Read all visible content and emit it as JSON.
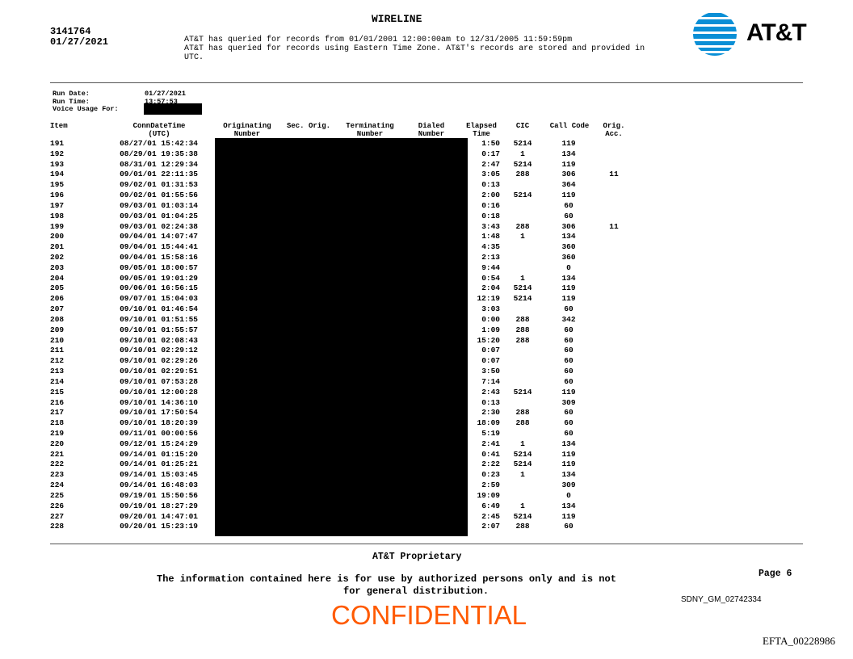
{
  "header": {
    "title": "WIRELINE",
    "case_number": "3141764",
    "date": "01/27/2021",
    "notice_lines": [
      "AT&T has queried for records from 01/01/2001 12:00:00am to 12/31/2005 11:59:59pm",
      "AT&T has queried for records using Eastern Time Zone. AT&T's records are stored and provided in",
      "UTC."
    ],
    "logo_text": "AT&T",
    "brand_color": "#0a8fd6"
  },
  "run_info": {
    "run_date_label": "Run Date:",
    "run_date": "01/27/2021",
    "run_time_label": "Run Time:",
    "run_time": "13:57:53",
    "voice_usage_label": "Voice Usage For:"
  },
  "table": {
    "columns": [
      {
        "l1": "Item",
        "l2": ""
      },
      {
        "l1": "ConnDateTime",
        "l2": "(UTC)"
      },
      {
        "l1": "Originating",
        "l2": "Number"
      },
      {
        "l1": "Sec. Orig.",
        "l2": ""
      },
      {
        "l1": "Terminating",
        "l2": "Number"
      },
      {
        "l1": "Dialed",
        "l2": "Number"
      },
      {
        "l1": "Elapsed",
        "l2": "Time"
      },
      {
        "l1": "CIC",
        "l2": ""
      },
      {
        "l1": "Call Code",
        "l2": ""
      },
      {
        "l1": "Orig.",
        "l2": "Acc."
      }
    ],
    "rows": [
      [
        "191",
        "08/27/01 15:42:34",
        "1:50",
        "5214",
        "119",
        ""
      ],
      [
        "192",
        "08/29/01 19:35:38",
        "0:17",
        "1",
        "134",
        ""
      ],
      [
        "193",
        "08/31/01 12:29:34",
        "2:47",
        "5214",
        "119",
        ""
      ],
      [
        "194",
        "09/01/01 22:11:35",
        "3:05",
        "288",
        "306",
        "11"
      ],
      [
        "195",
        "09/02/01 01:31:53",
        "0:13",
        "",
        "364",
        ""
      ],
      [
        "196",
        "09/02/01 01:55:56",
        "2:00",
        "5214",
        "119",
        ""
      ],
      [
        "197",
        "09/03/01 01:03:14",
        "0:16",
        "",
        "60",
        ""
      ],
      [
        "198",
        "09/03/01 01:04:25",
        "0:18",
        "",
        "60",
        ""
      ],
      [
        "199",
        "09/03/01 02:24:38",
        "3:43",
        "288",
        "306",
        "11"
      ],
      [
        "200",
        "09/04/01 14:07:47",
        "1:48",
        "1",
        "134",
        ""
      ],
      [
        "201",
        "09/04/01 15:44:41",
        "4:35",
        "",
        "360",
        ""
      ],
      [
        "202",
        "09/04/01 15:58:16",
        "2:13",
        "",
        "360",
        ""
      ],
      [
        "203",
        "09/05/01 18:00:57",
        "9:44",
        "",
        "0",
        ""
      ],
      [
        "204",
        "09/05/01 19:01:29",
        "0:54",
        "1",
        "134",
        ""
      ],
      [
        "205",
        "09/06/01 16:56:15",
        "2:04",
        "5214",
        "119",
        ""
      ],
      [
        "206",
        "09/07/01 15:04:03",
        "12:19",
        "5214",
        "119",
        ""
      ],
      [
        "207",
        "09/10/01 01:46:54",
        "3:03",
        "",
        "60",
        ""
      ],
      [
        "208",
        "09/10/01 01:51:55",
        "0:00",
        "288",
        "342",
        ""
      ],
      [
        "209",
        "09/10/01 01:55:57",
        "1:09",
        "288",
        "60",
        ""
      ],
      [
        "210",
        "09/10/01 02:08:43",
        "15:20",
        "288",
        "60",
        ""
      ],
      [
        "211",
        "09/10/01 02:29:12",
        "0:07",
        "",
        "60",
        ""
      ],
      [
        "212",
        "09/10/01 02:29:26",
        "0:07",
        "",
        "60",
        ""
      ],
      [
        "213",
        "09/10/01 02:29:51",
        "3:50",
        "",
        "60",
        ""
      ],
      [
        "214",
        "09/10/01 07:53:28",
        "7:14",
        "",
        "60",
        ""
      ],
      [
        "215",
        "09/10/01 12:00:28",
        "2:43",
        "5214",
        "119",
        ""
      ],
      [
        "216",
        "09/10/01 14:36:10",
        "0:13",
        "",
        "309",
        ""
      ],
      [
        "217",
        "09/10/01 17:50:54",
        "2:30",
        "288",
        "60",
        ""
      ],
      [
        "218",
        "09/10/01 18:20:39",
        "18:09",
        "288",
        "60",
        ""
      ],
      [
        "219",
        "09/11/01 00:00:56",
        "5:19",
        "",
        "60",
        ""
      ],
      [
        "220",
        "09/12/01 15:24:29",
        "2:41",
        "1",
        "134",
        ""
      ],
      [
        "221",
        "09/14/01 01:15:20",
        "0:41",
        "5214",
        "119",
        ""
      ],
      [
        "222",
        "09/14/01 01:25:21",
        "2:22",
        "5214",
        "119",
        ""
      ],
      [
        "223",
        "09/14/01 15:03:45",
        "0:23",
        "1",
        "134",
        ""
      ],
      [
        "224",
        "09/14/01 16:48:03",
        "2:59",
        "",
        "309",
        ""
      ],
      [
        "225",
        "09/19/01 15:50:56",
        "19:09",
        "",
        "0",
        ""
      ],
      [
        "226",
        "09/19/01 18:27:29",
        "6:49",
        "1",
        "134",
        ""
      ],
      [
        "227",
        "09/20/01 14:47:01",
        "2:45",
        "5214",
        "119",
        ""
      ],
      [
        "228",
        "09/20/01 15:23:19",
        "2:07",
        "288",
        "60",
        ""
      ]
    ]
  },
  "footer": {
    "proprietary": "AT&T Proprietary",
    "notice_line1": "The information contained here is for use by authorized persons only and is not",
    "notice_line2": "for general distribution.",
    "page": "Page 6",
    "bates": "SDNY_GM_02742334",
    "confidential": "CONFIDENTIAL",
    "confidential_color": "#ff5a00",
    "efta": "EFTA_00228986"
  }
}
